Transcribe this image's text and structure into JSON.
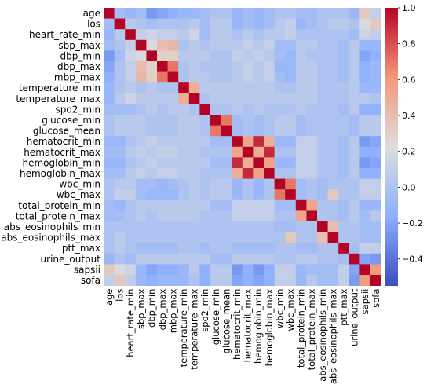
{
  "chart_data": {
    "type": "heatmap",
    "title": "",
    "xlabel": "",
    "ylabel": "",
    "variables": [
      "age",
      "los",
      "heart_rate_min",
      "sbp_max",
      "dbp_min",
      "dbp_max",
      "mbp_max",
      "temperature_min",
      "temperature_max",
      "spo2_min",
      "glucose_min",
      "glucose_mean",
      "hematocrit_min",
      "hematocrit_max",
      "hemoglobin_min",
      "hemoglobin_max",
      "wbc_min",
      "wbc_max",
      "total_protein_min",
      "total_protein_max",
      "abs_eosinophils_min",
      "abs_eosinophils_max",
      "ptt_max",
      "urine_output",
      "sapsii",
      "sofa"
    ],
    "colorbar": {
      "min": -0.55,
      "max": 1.0,
      "ticks": [
        1.0,
        0.8,
        0.6,
        0.4,
        0.2,
        0.0,
        -0.2,
        -0.4
      ],
      "tick_labels": [
        "1.0",
        "0.8",
        "0.6",
        "0.4",
        "0.2",
        "0.0",
        "−0.2",
        "−0.4"
      ],
      "colormap": "coolwarm"
    },
    "matrix": [
      [
        1.0,
        -0.05,
        -0.1,
        -0.05,
        -0.25,
        -0.2,
        -0.15,
        -0.1,
        -0.1,
        -0.05,
        0.0,
        0.0,
        -0.1,
        -0.05,
        -0.1,
        -0.05,
        0.0,
        0.0,
        -0.05,
        -0.05,
        0.0,
        0.0,
        0.0,
        -0.1,
        0.35,
        0.1
      ],
      [
        -0.05,
        1.0,
        0.05,
        0.0,
        -0.05,
        0.0,
        0.0,
        0.0,
        0.05,
        -0.05,
        0.05,
        0.05,
        -0.1,
        -0.05,
        -0.1,
        -0.05,
        0.05,
        0.1,
        -0.1,
        -0.05,
        0.0,
        0.05,
        0.05,
        0.0,
        0.2,
        0.35
      ],
      [
        -0.1,
        0.05,
        1.0,
        0.1,
        0.15,
        0.1,
        0.1,
        0.05,
        0.15,
        -0.05,
        0.05,
        0.05,
        0.0,
        0.05,
        0.0,
        0.05,
        0.05,
        0.1,
        0.0,
        0.0,
        0.0,
        0.0,
        0.0,
        -0.05,
        0.15,
        0.1
      ],
      [
        -0.05,
        0.0,
        0.1,
        1.0,
        0.2,
        0.4,
        0.45,
        0.0,
        0.05,
        0.0,
        0.05,
        0.05,
        0.05,
        0.1,
        0.05,
        0.1,
        -0.05,
        -0.05,
        0.05,
        0.05,
        0.0,
        0.0,
        -0.05,
        0.05,
        -0.1,
        -0.1
      ],
      [
        -0.25,
        -0.05,
        0.15,
        0.2,
        1.0,
        0.3,
        0.3,
        0.05,
        0.05,
        0.05,
        0.0,
        0.0,
        0.1,
        0.05,
        0.1,
        0.05,
        -0.05,
        -0.1,
        0.05,
        0.0,
        0.0,
        0.0,
        -0.05,
        0.05,
        -0.2,
        -0.15
      ],
      [
        -0.2,
        0.0,
        0.1,
        0.4,
        0.3,
        1.0,
        0.7,
        0.0,
        0.05,
        0.0,
        0.0,
        0.0,
        0.05,
        0.1,
        0.05,
        0.1,
        -0.1,
        -0.1,
        0.05,
        0.05,
        0.0,
        0.0,
        -0.05,
        0.05,
        -0.15,
        -0.1
      ],
      [
        -0.15,
        0.0,
        0.1,
        0.45,
        0.3,
        0.7,
        1.0,
        0.0,
        0.05,
        0.05,
        0.0,
        0.0,
        0.05,
        0.1,
        0.05,
        0.1,
        -0.05,
        -0.1,
        0.05,
        0.05,
        0.0,
        0.0,
        -0.05,
        0.05,
        -0.15,
        -0.1
      ],
      [
        -0.1,
        0.0,
        0.05,
        0.0,
        0.05,
        0.0,
        0.0,
        1.0,
        0.5,
        0.05,
        0.05,
        0.05,
        0.05,
        0.05,
        0.05,
        0.05,
        0.0,
        0.0,
        0.05,
        0.05,
        0.0,
        0.0,
        0.0,
        0.05,
        -0.1,
        -0.1
      ],
      [
        -0.1,
        0.05,
        0.15,
        0.05,
        0.05,
        0.05,
        0.05,
        0.5,
        1.0,
        0.0,
        0.05,
        0.05,
        0.05,
        0.05,
        0.05,
        0.05,
        0.05,
        0.05,
        0.05,
        0.05,
        0.0,
        0.0,
        0.0,
        0.05,
        0.05,
        0.0
      ],
      [
        -0.05,
        -0.05,
        -0.05,
        0.0,
        0.05,
        0.0,
        0.05,
        0.05,
        0.0,
        1.0,
        0.0,
        0.0,
        0.05,
        0.0,
        0.05,
        0.0,
        0.0,
        0.0,
        0.05,
        0.0,
        0.0,
        0.0,
        -0.05,
        0.05,
        -0.15,
        -0.15
      ],
      [
        0.0,
        0.05,
        0.05,
        0.05,
        0.0,
        0.0,
        0.0,
        0.05,
        0.05,
        0.0,
        1.0,
        0.7,
        -0.05,
        0.0,
        -0.05,
        0.0,
        0.05,
        0.05,
        -0.05,
        0.0,
        0.0,
        0.0,
        0.0,
        -0.05,
        0.05,
        0.05
      ],
      [
        0.0,
        0.05,
        0.05,
        0.05,
        0.0,
        0.0,
        0.0,
        0.05,
        0.05,
        0.0,
        0.7,
        1.0,
        -0.05,
        0.0,
        -0.05,
        0.0,
        0.05,
        0.05,
        -0.05,
        0.0,
        0.0,
        0.0,
        0.0,
        -0.05,
        0.05,
        0.05
      ],
      [
        -0.1,
        -0.1,
        0.0,
        0.05,
        0.1,
        0.05,
        0.05,
        0.05,
        0.05,
        0.05,
        -0.05,
        -0.05,
        1.0,
        0.55,
        0.9,
        0.5,
        -0.1,
        -0.1,
        0.1,
        0.1,
        0.0,
        0.0,
        -0.05,
        0.05,
        -0.25,
        -0.2
      ],
      [
        -0.05,
        -0.05,
        0.05,
        0.1,
        0.05,
        0.1,
        0.1,
        0.05,
        0.05,
        0.0,
        0.0,
        0.0,
        0.55,
        1.0,
        0.5,
        0.9,
        0.0,
        0.0,
        0.1,
        0.1,
        0.0,
        0.0,
        -0.05,
        0.05,
        -0.15,
        -0.15
      ],
      [
        -0.1,
        -0.1,
        0.0,
        0.05,
        0.1,
        0.05,
        0.05,
        0.05,
        0.05,
        0.05,
        -0.05,
        -0.05,
        0.9,
        0.5,
        1.0,
        0.55,
        -0.1,
        -0.1,
        0.1,
        0.1,
        0.0,
        0.0,
        -0.05,
        0.05,
        -0.25,
        -0.2
      ],
      [
        -0.05,
        -0.05,
        0.05,
        0.1,
        0.05,
        0.1,
        0.1,
        0.05,
        0.05,
        0.0,
        0.0,
        0.0,
        0.5,
        0.9,
        0.55,
        1.0,
        0.0,
        0.0,
        0.1,
        0.1,
        0.0,
        0.0,
        -0.05,
        0.05,
        -0.15,
        -0.15
      ],
      [
        0.0,
        0.05,
        0.05,
        -0.05,
        -0.05,
        -0.1,
        -0.05,
        0.0,
        0.05,
        0.0,
        0.05,
        0.05,
        -0.1,
        0.0,
        -0.1,
        0.0,
        1.0,
        0.7,
        -0.05,
        0.0,
        -0.05,
        0.0,
        0.0,
        0.0,
        0.1,
        0.1
      ],
      [
        0.0,
        0.1,
        0.1,
        -0.05,
        -0.1,
        -0.1,
        -0.1,
        0.0,
        0.05,
        0.0,
        0.05,
        0.05,
        -0.1,
        0.0,
        -0.1,
        0.0,
        0.7,
        1.0,
        -0.05,
        0.0,
        -0.05,
        0.35,
        0.0,
        0.0,
        0.1,
        0.1
      ],
      [
        -0.05,
        -0.1,
        0.0,
        0.05,
        0.05,
        0.05,
        0.05,
        0.05,
        0.05,
        0.05,
        -0.05,
        -0.05,
        0.1,
        0.1,
        0.1,
        0.1,
        -0.05,
        -0.05,
        1.0,
        0.55,
        0.0,
        0.0,
        -0.05,
        0.05,
        -0.1,
        -0.1
      ],
      [
        -0.05,
        -0.05,
        0.0,
        0.05,
        0.0,
        0.05,
        0.05,
        0.05,
        0.05,
        0.0,
        0.0,
        0.0,
        0.1,
        0.1,
        0.1,
        0.1,
        0.0,
        0.0,
        0.55,
        1.0,
        0.0,
        0.0,
        -0.05,
        0.05,
        -0.05,
        0.05
      ],
      [
        0.0,
        0.0,
        0.0,
        0.0,
        0.0,
        0.0,
        0.0,
        0.0,
        0.0,
        0.0,
        0.0,
        0.0,
        0.0,
        0.0,
        0.0,
        0.0,
        -0.05,
        -0.05,
        0.0,
        0.0,
        1.0,
        0.4,
        0.0,
        0.0,
        -0.05,
        -0.05
      ],
      [
        0.0,
        0.05,
        0.0,
        0.0,
        0.0,
        0.0,
        0.0,
        0.0,
        0.0,
        0.0,
        0.0,
        0.0,
        0.0,
        0.0,
        0.0,
        0.0,
        0.0,
        0.35,
        0.0,
        0.0,
        0.4,
        1.0,
        0.0,
        0.0,
        -0.05,
        -0.05
      ],
      [
        0.0,
        0.05,
        0.0,
        -0.05,
        -0.05,
        -0.05,
        -0.05,
        0.0,
        0.0,
        -0.05,
        0.0,
        0.0,
        -0.05,
        -0.05,
        -0.05,
        -0.05,
        0.0,
        0.0,
        -0.05,
        -0.05,
        0.0,
        0.0,
        1.0,
        -0.05,
        0.1,
        0.1
      ],
      [
        -0.1,
        0.0,
        -0.05,
        0.05,
        0.05,
        0.05,
        0.05,
        0.05,
        0.05,
        0.05,
        -0.05,
        -0.05,
        0.05,
        0.05,
        0.05,
        0.05,
        0.0,
        0.0,
        0.05,
        0.05,
        0.0,
        0.0,
        -0.05,
        1.0,
        -0.2,
        -0.25
      ],
      [
        0.35,
        0.2,
        0.15,
        -0.1,
        -0.2,
        -0.15,
        -0.15,
        -0.1,
        0.05,
        -0.15,
        0.05,
        0.05,
        -0.25,
        -0.15,
        -0.25,
        -0.15,
        0.1,
        0.1,
        -0.1,
        -0.05,
        -0.05,
        -0.05,
        0.1,
        -0.2,
        1.0,
        0.6
      ],
      [
        0.1,
        0.35,
        0.1,
        -0.1,
        -0.15,
        -0.1,
        -0.1,
        -0.1,
        0.0,
        -0.15,
        0.05,
        0.05,
        -0.2,
        -0.15,
        -0.2,
        -0.15,
        0.1,
        0.1,
        -0.1,
        0.05,
        -0.05,
        -0.05,
        0.1,
        -0.25,
        0.6,
        1.0
      ]
    ]
  }
}
